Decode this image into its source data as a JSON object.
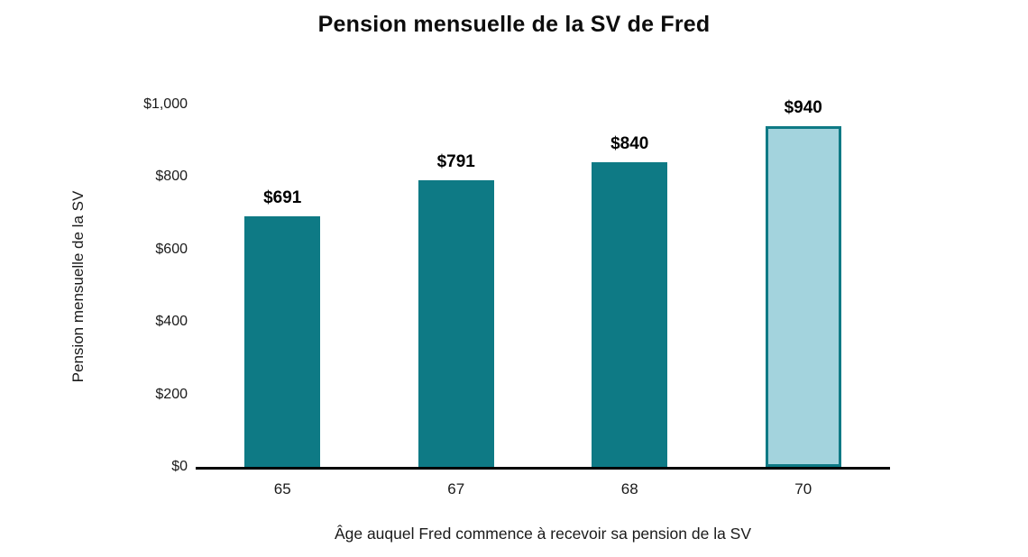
{
  "chart_data": {
    "type": "bar",
    "title": "Pension mensuelle de la SV de Fred",
    "xlabel": "Âge auquel Fred commence à recevoir sa pension de la SV",
    "ylabel": "Pension mensuelle de la SV",
    "categories": [
      "65",
      "67",
      "68",
      "70"
    ],
    "values": [
      691,
      791,
      840,
      940
    ],
    "data_labels": [
      "$691",
      "$791",
      "$840",
      "$940"
    ],
    "ylim": [
      0,
      1000
    ],
    "yticks": [
      {
        "value": 0,
        "label": "$0"
      },
      {
        "value": 200,
        "label": "$200"
      },
      {
        "value": 400,
        "label": "$400"
      },
      {
        "value": 600,
        "label": "$600"
      },
      {
        "value": 800,
        "label": "$800"
      },
      {
        "value": 1000,
        "label": "$1,000"
      }
    ],
    "grid": false,
    "legend": null,
    "highlight_index": 3,
    "colors": {
      "bar_fill": "#0e7a85",
      "highlight_fill": "#a3d3dd",
      "highlight_border": "#0e7a85",
      "axis_line": "#000000",
      "text": "#1a1a1a"
    }
  }
}
